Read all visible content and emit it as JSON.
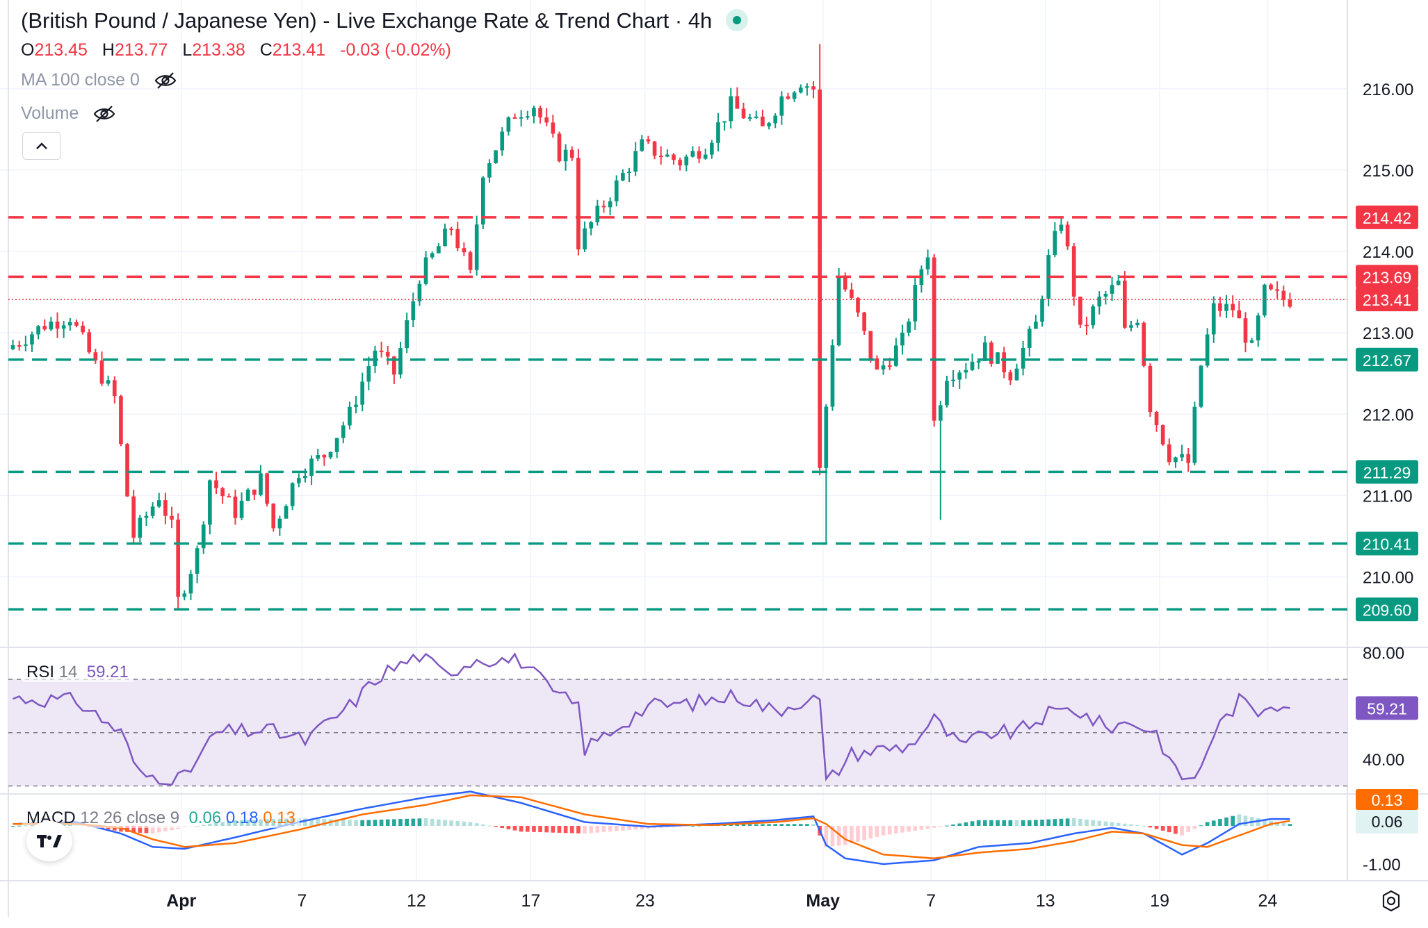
{
  "header": {
    "title": "(British Pound / Japanese Yen) - Live Exchange Rate & Trend Chart · 4h",
    "ohlc": {
      "o_label": "O",
      "o": "213.45",
      "h_label": "H",
      "h": "213.77",
      "l_label": "L",
      "l": "213.38",
      "c_label": "C",
      "c": "213.41",
      "change": "-0.03 (-0.02%)"
    },
    "ma_label": "MA 100 close 0",
    "volume_label": "Volume"
  },
  "indicators": {
    "rsi": {
      "name": "RSI",
      "period": "14",
      "value": "59.21"
    },
    "macd": {
      "name": "MACD",
      "params": "12 26 close 9",
      "hist": "0.06",
      "macd": "0.18",
      "signal": "0.13"
    }
  },
  "colors": {
    "up": "#089981",
    "down": "#f23645",
    "resistance": "#f23645",
    "support": "#089981",
    "rsi_line": "#7e57c2",
    "rsi_band": "#ede7f6",
    "macd_line": "#2962ff",
    "signal_line": "#ff6d00",
    "grid": "#f0f3fa",
    "axis_text": "#131722"
  },
  "chart_data": [
    {
      "type": "candlestick",
      "title": "(British Pound / Japanese Yen) - Live Exchange Rate & Trend Chart · 4h",
      "timeframe": "4h",
      "ylim": [
        209.15,
        216.75
      ],
      "y_ticks": [
        210,
        211,
        212,
        213,
        214,
        215,
        216
      ],
      "y_tick_labels": [
        "210.00",
        "211.00",
        "212.00",
        "213.00",
        "214.00",
        "215.00",
        "216.00"
      ],
      "x_tick_labels": [
        "Apr",
        "7",
        "12",
        "17",
        "23",
        "May",
        "7",
        "13",
        "19",
        "24"
      ],
      "grid": true,
      "last_price": 213.41,
      "levels": [
        {
          "price": 214.42,
          "label": "214.42",
          "kind": "resistance"
        },
        {
          "price": 213.69,
          "label": "213.69",
          "kind": "resistance"
        },
        {
          "price": 212.67,
          "label": "212.67",
          "kind": "support"
        },
        {
          "price": 211.29,
          "label": "211.29",
          "kind": "support"
        },
        {
          "price": 210.41,
          "label": "210.41",
          "kind": "support"
        },
        {
          "price": 209.6,
          "label": "209.60",
          "kind": "support"
        }
      ],
      "path": [
        [
          0,
          212.8
        ],
        [
          6,
          213.1
        ],
        [
          10,
          213.2
        ],
        [
          14,
          212.6
        ],
        [
          17,
          212.2
        ],
        [
          19,
          211.0
        ],
        [
          20,
          210.5
        ],
        [
          24,
          211.0
        ],
        [
          26,
          210.6
        ],
        [
          27,
          209.7
        ],
        [
          30,
          210.3
        ],
        [
          32,
          211.2
        ],
        [
          36,
          210.8
        ],
        [
          40,
          211.2
        ],
        [
          42,
          210.6
        ],
        [
          46,
          211.3
        ],
        [
          50,
          211.5
        ],
        [
          54,
          212.0
        ],
        [
          58,
          212.8
        ],
        [
          61,
          212.5
        ],
        [
          65,
          213.7
        ],
        [
          70,
          214.3
        ],
        [
          73,
          213.7
        ],
        [
          75,
          215.0
        ],
        [
          80,
          215.7
        ],
        [
          83,
          215.8
        ],
        [
          87,
          215.2
        ],
        [
          89,
          215.2
        ],
        [
          90,
          214.1
        ],
        [
          95,
          214.7
        ],
        [
          100,
          215.3
        ],
        [
          106,
          215.1
        ],
        [
          110,
          215.3
        ],
        [
          114,
          215.8
        ],
        [
          119,
          215.5
        ],
        [
          122,
          215.9
        ],
        [
          125,
          216.1
        ],
        [
          127,
          216.0
        ],
        [
          128,
          211.3
        ],
        [
          131,
          213.7
        ],
        [
          134,
          213.2
        ],
        [
          137,
          212.5
        ],
        [
          141,
          212.9
        ],
        [
          144,
          213.8
        ],
        [
          145,
          214.0
        ],
        [
          146,
          211.9
        ],
        [
          148,
          212.5
        ],
        [
          151,
          212.6
        ],
        [
          154,
          212.8
        ],
        [
          158,
          212.5
        ],
        [
          162,
          213.1
        ],
        [
          164,
          213.9
        ],
        [
          166,
          214.4
        ],
        [
          167,
          214.0
        ],
        [
          169,
          213.0
        ],
        [
          172,
          213.4
        ],
        [
          175,
          213.6
        ],
        [
          176,
          213.0
        ],
        [
          178,
          213.2
        ],
        [
          180,
          212.1
        ],
        [
          183,
          211.5
        ],
        [
          186,
          211.4
        ],
        [
          188,
          212.6
        ],
        [
          190,
          213.3
        ],
        [
          193,
          213.3
        ],
        [
          196,
          212.8
        ],
        [
          198,
          213.5
        ],
        [
          201,
          213.41
        ]
      ],
      "x_label_positions": [
        [
          27,
          "Apr"
        ],
        [
          46,
          "7"
        ],
        [
          64,
          "12"
        ],
        [
          82,
          "17"
        ],
        [
          100,
          "23"
        ],
        [
          128,
          "May"
        ],
        [
          145,
          "7"
        ],
        [
          163,
          "13"
        ],
        [
          181,
          "19"
        ],
        [
          198,
          "24"
        ]
      ]
    },
    {
      "type": "line",
      "name": "RSI 14",
      "ylim": [
        27,
        82
      ],
      "y_tick_labels": [
        "80.00",
        "40.00"
      ],
      "bands": [
        70,
        50,
        30
      ],
      "last_value": 59.21,
      "x": [
        0,
        10,
        17,
        20,
        27,
        32,
        40,
        46,
        53,
        58,
        64,
        68,
        73,
        80,
        85,
        89,
        90,
        95,
        100,
        107,
        114,
        120,
        125,
        127,
        128,
        132,
        137,
        141,
        145,
        149,
        154,
        158,
        163,
        167,
        172,
        176,
        180,
        183,
        186,
        189,
        193,
        196,
        198,
        201
      ],
      "values": [
        63,
        62,
        50,
        34,
        33,
        50,
        51,
        47,
        60,
        72,
        79,
        72,
        78,
        77,
        65,
        60,
        44,
        52,
        60,
        61,
        64,
        58,
        63,
        62,
        31,
        42,
        44,
        45,
        55,
        45,
        50,
        50,
        57,
        59,
        52,
        54,
        50,
        35,
        32,
        50,
        62,
        58,
        62,
        59.21
      ]
    },
    {
      "type": "line",
      "name": "MACD 12 26 close 9",
      "series": [
        {
          "name": "MACD",
          "x": [
            0,
            10,
            17,
            22,
            27,
            35,
            45,
            55,
            65,
            72,
            80,
            90,
            100,
            110,
            120,
            126,
            128,
            131,
            137,
            145,
            152,
            160,
            167,
            173,
            178,
            184,
            188,
            193,
            198,
            201
          ],
          "values": [
            0.05,
            0.1,
            -0.2,
            -0.55,
            -0.6,
            -0.3,
            0.1,
            0.45,
            0.75,
            0.9,
            0.6,
            0.1,
            -0.02,
            0.05,
            0.15,
            0.25,
            -0.5,
            -0.85,
            -1.0,
            -0.9,
            -0.55,
            -0.45,
            -0.2,
            -0.05,
            -0.2,
            -0.75,
            -0.45,
            0.05,
            0.18,
            0.18
          ]
        },
        {
          "name": "Signal",
          "x": [
            0,
            10,
            17,
            22,
            27,
            35,
            45,
            55,
            65,
            72,
            80,
            90,
            100,
            110,
            120,
            126,
            128,
            131,
            137,
            145,
            152,
            160,
            167,
            173,
            178,
            184,
            188,
            193,
            198,
            201
          ],
          "values": [
            0.05,
            0.05,
            -0.05,
            -0.35,
            -0.55,
            -0.45,
            -0.1,
            0.3,
            0.55,
            0.8,
            0.75,
            0.3,
            0.05,
            0.02,
            0.1,
            0.2,
            0.05,
            -0.35,
            -0.75,
            -0.85,
            -0.7,
            -0.6,
            -0.4,
            -0.15,
            -0.2,
            -0.5,
            -0.55,
            -0.25,
            0.05,
            0.13
          ]
        }
      ],
      "histogram_last": 0.06,
      "ylim": [
        -1.4,
        0.8
      ],
      "y_tick_labels": [
        "-1.00"
      ],
      "price_labels": [
        "0.13",
        "0.06"
      ]
    }
  ]
}
